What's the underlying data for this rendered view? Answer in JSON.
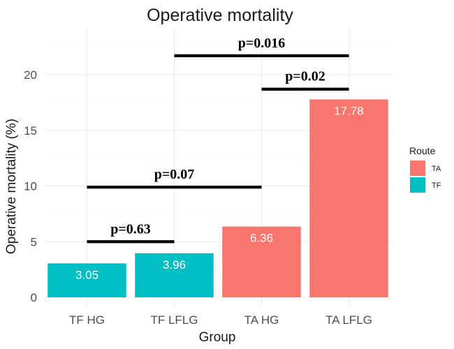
{
  "chart_data": {
    "type": "bar",
    "title": "Operative mortality",
    "xlabel": "Group",
    "ylabel": "Operative mortality (%)",
    "categories": [
      "TF HG",
      "TF LFLG",
      "TA HG",
      "TA LFLG"
    ],
    "values": [
      3.05,
      3.96,
      6.36,
      17.78
    ],
    "value_labels": [
      "3.05",
      "3.96",
      "6.36",
      "17.78"
    ],
    "route": [
      "TF",
      "TF",
      "TA",
      "TA"
    ],
    "ylim": [
      0,
      24
    ],
    "yticks": [
      0,
      5,
      10,
      15,
      20
    ],
    "ytick_labels": [
      "0",
      "5",
      "10",
      "15",
      "20"
    ],
    "grid": true,
    "legend": {
      "title": "Route",
      "placement": "right",
      "entries": [
        {
          "name": "TA",
          "color": "#F8766D"
        },
        {
          "name": "TF",
          "color": "#00BFC4"
        }
      ]
    },
    "comparisons": [
      {
        "from": "TF HG",
        "to": "TF LFLG",
        "y": 5.0,
        "label": "p=0.63"
      },
      {
        "from": "TF HG",
        "to": "TA HG",
        "y": 9.9,
        "label": "p=0.07"
      },
      {
        "from": "TA HG",
        "to": "TA LFLG",
        "y": 18.7,
        "label": "p=0.02"
      },
      {
        "from": "TF LFLG",
        "to": "TA LFLG",
        "y": 21.7,
        "label": "p=0.016"
      }
    ],
    "colors": {
      "TA": "#F8766D",
      "TF": "#00BFC4"
    }
  }
}
